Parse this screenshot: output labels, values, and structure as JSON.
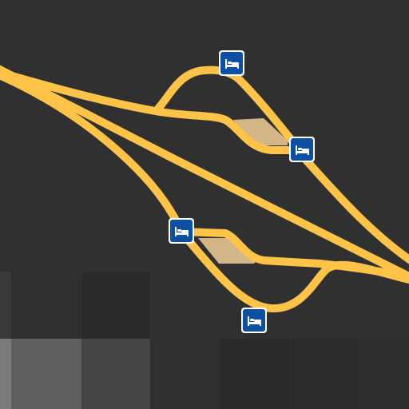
{
  "map": {
    "background_color": "#303030",
    "road_color": "#ffc447",
    "area_color": "#d2b687",
    "tile_colors": [
      "#2b2b2b",
      "#383838",
      "#4a4a4a",
      "#5e5e5e",
      "#444444",
      "#262626"
    ],
    "roads": [
      {
        "name": "main-highway",
        "kind": "motorway"
      },
      {
        "name": "upper-parallel-road",
        "kind": "motorway"
      },
      {
        "name": "upper-rest-area-loop",
        "kind": "service-road"
      },
      {
        "name": "lower-parallel-road",
        "kind": "motorway"
      },
      {
        "name": "lower-rest-area-loop",
        "kind": "service-road"
      }
    ],
    "rest_areas": [
      {
        "name": "upper-rest-area-parking",
        "kind": "parking-area"
      },
      {
        "name": "lower-rest-area-parking",
        "kind": "parking-area"
      }
    ],
    "pois": [
      {
        "name": "hotel-marker-1",
        "icon": "bed-icon",
        "color": "#0d4fa3"
      },
      {
        "name": "hotel-marker-2",
        "icon": "bed-icon",
        "color": "#0d4fa3"
      },
      {
        "name": "hotel-marker-3",
        "icon": "bed-icon",
        "color": "#0d4fa3"
      },
      {
        "name": "hotel-marker-4",
        "icon": "bed-icon",
        "color": "#0d4fa3"
      }
    ]
  }
}
